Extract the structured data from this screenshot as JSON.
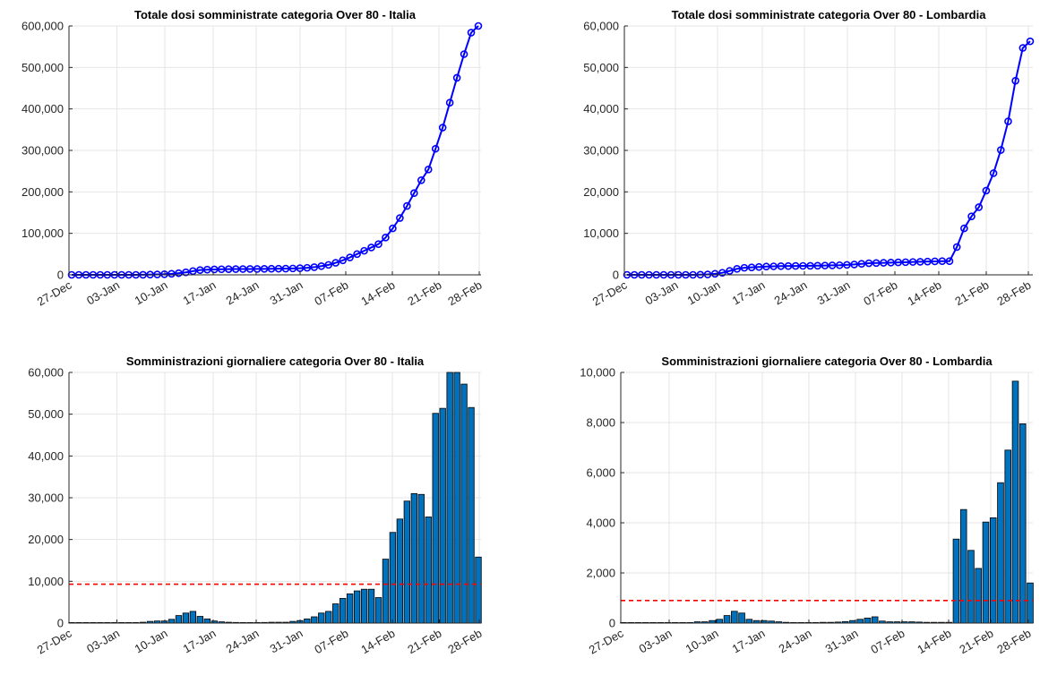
{
  "x_ticks": [
    "27-Dec",
    "03-Jan",
    "10-Jan",
    "17-Jan",
    "24-Jan",
    "31-Jan",
    "07-Feb",
    "14-Feb",
    "21-Feb",
    "28-Feb"
  ],
  "colors": {
    "line": "#0000ff",
    "bar_fill": "#0072bd",
    "bar_edge": "#000000",
    "reference": "#ff0000",
    "grid": "#e6e6e6",
    "axis": "#262626"
  },
  "chart_data": [
    {
      "type": "line",
      "title": "Totale dosi somministrate categoria Over 80 - Italia",
      "x_range": [
        "27-Dec",
        "28-Feb"
      ],
      "ylim": [
        0,
        600000
      ],
      "y_ticks": [
        "0",
        "100,000",
        "200,000",
        "300,000",
        "400,000",
        "500,000",
        "600,000"
      ],
      "grid": true,
      "marker": "circle",
      "values": [
        0,
        0,
        0,
        0,
        0,
        0,
        0,
        0,
        0,
        0,
        200,
        600,
        1000,
        1500,
        2500,
        4000,
        6000,
        9000,
        11500,
        12500,
        13000,
        13500,
        13700,
        13900,
        14000,
        14100,
        14200,
        14400,
        14600,
        14800,
        15000,
        15400,
        16000,
        17000,
        18500,
        21000,
        24000,
        29000,
        35000,
        42000,
        50000,
        58000,
        66000,
        74000,
        90000,
        112000,
        137000,
        166000,
        197000,
        228000,
        254000,
        304000,
        355000,
        415000,
        475000,
        532000,
        584000,
        600000
      ]
    },
    {
      "type": "line",
      "title": "Totale dosi somministrate categoria Over 80 - Lombardia",
      "x_range": [
        "27-Dec",
        "28-Feb"
      ],
      "ylim": [
        0,
        60000
      ],
      "y_ticks": [
        "0",
        "10,000",
        "20,000",
        "30,000",
        "40,000",
        "50,000",
        "60,000"
      ],
      "grid": true,
      "marker": "circle",
      "values": [
        0,
        0,
        0,
        0,
        0,
        0,
        0,
        0,
        0,
        0,
        50,
        100,
        250,
        500,
        950,
        1450,
        1700,
        1800,
        1900,
        2000,
        2050,
        2100,
        2120,
        2140,
        2160,
        2180,
        2200,
        2240,
        2280,
        2320,
        2400,
        2500,
        2650,
        2800,
        2850,
        2900,
        2950,
        3000,
        3050,
        3100,
        3150,
        3200,
        3250,
        3300,
        3300,
        6700,
        11200,
        14100,
        16300,
        20300,
        24500,
        30100,
        37000,
        46800,
        54700,
        56300
      ]
    },
    {
      "type": "bar",
      "title": "Somministrazioni giornaliere categoria Over 80 - Italia",
      "x_range": [
        "27-Dec",
        "28-Feb"
      ],
      "ylim": [
        0,
        60000
      ],
      "y_ticks": [
        "0",
        "10,000",
        "20,000",
        "30,000",
        "40,000",
        "50,000",
        "60,000"
      ],
      "grid": true,
      "reference_line": 9300,
      "values": [
        0,
        0,
        0,
        0,
        0,
        0,
        0,
        0,
        0,
        0,
        200,
        400,
        500,
        500,
        900,
        1800,
        2400,
        2800,
        1600,
        1000,
        500,
        300,
        200,
        150,
        100,
        100,
        100,
        150,
        200,
        200,
        200,
        400,
        600,
        1000,
        1500,
        2400,
        2800,
        4600,
        5900,
        7000,
        7700,
        8100,
        8100,
        6100,
        15300,
        21700,
        24900,
        29200,
        31000,
        30800,
        25400,
        50200,
        51400,
        60000,
        60000,
        57200,
        51600,
        15800
      ]
    },
    {
      "type": "bar",
      "title": "Somministrazioni giornaliere categoria Over 80 - Lombardia",
      "x_range": [
        "27-Dec",
        "28-Feb"
      ],
      "ylim": [
        0,
        10000
      ],
      "y_ticks": [
        "0",
        "2,000",
        "4,000",
        "6,000",
        "8,000",
        "10,000"
      ],
      "grid": true,
      "reference_line": 900,
      "values": [
        0,
        0,
        0,
        0,
        0,
        0,
        0,
        0,
        0,
        0,
        50,
        50,
        100,
        150,
        300,
        470,
        400,
        150,
        100,
        100,
        80,
        50,
        30,
        20,
        20,
        20,
        20,
        30,
        30,
        40,
        60,
        100,
        150,
        200,
        250,
        80,
        50,
        50,
        50,
        50,
        40,
        30,
        30,
        30,
        30,
        3350,
        4530,
        2900,
        2180,
        4030,
        4200,
        5600,
        6900,
        9650,
        7950,
        1600
      ]
    }
  ]
}
